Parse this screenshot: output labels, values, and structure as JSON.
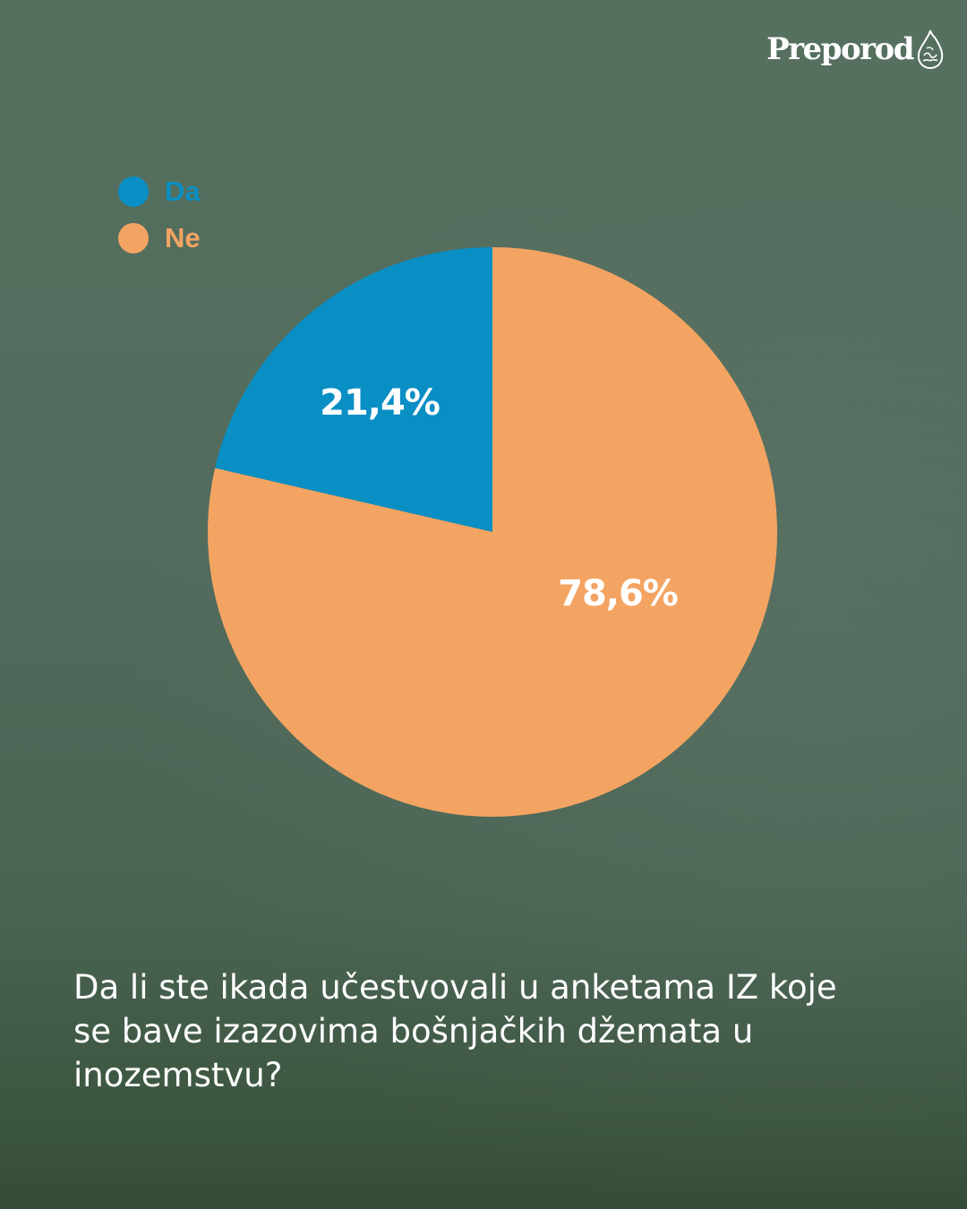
{
  "brand": {
    "name": "Preporod",
    "logo_icon": "preporod-drop-icon"
  },
  "question": "Da li ste ikada učestvovali u anketama IZ koje se bave izazovima bošnjačkih džemata u inozemstvu?",
  "colors": {
    "da": "#0a8fc4",
    "ne": "#f4a462",
    "text": "#ffffff"
  },
  "chart_data": {
    "type": "pie",
    "title": "",
    "legend_position": "top-left",
    "slices": [
      {
        "label": "Da",
        "value": 21.4,
        "display": "21,4%",
        "color": "#0a8fc4"
      },
      {
        "label": "Ne",
        "value": 78.6,
        "display": "78,6%",
        "color": "#f4a462"
      }
    ]
  }
}
